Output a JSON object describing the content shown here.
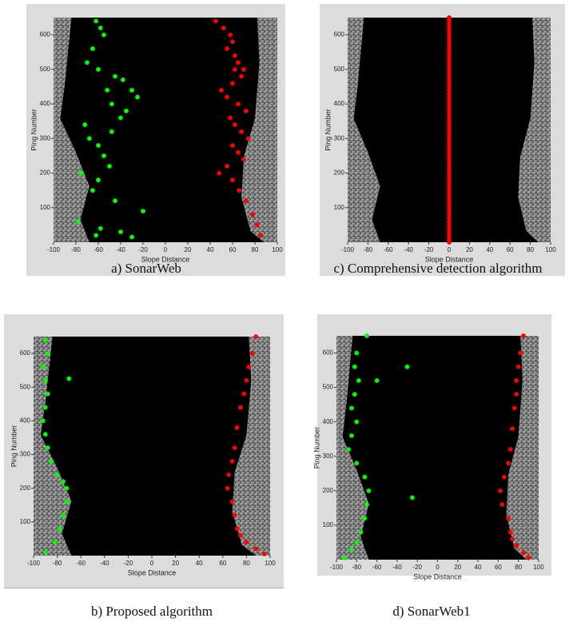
{
  "chart_data": [
    {
      "type": "scatter",
      "caption": "a) SonarWeb",
      "xlabel": "Slope Distance",
      "ylabel": "Ping Number",
      "xlim": [
        -100,
        100
      ],
      "ylim": [
        0,
        650
      ],
      "xticks": [
        -100,
        -80,
        -60,
        -40,
        -20,
        0,
        20,
        40,
        60,
        80,
        100
      ],
      "yticks": [
        100,
        200,
        300,
        400,
        500,
        600
      ],
      "series": [
        {
          "color": "#00ff00",
          "x": [
            -62,
            -58,
            -55,
            -65,
            -70,
            -60,
            -45,
            -38,
            -30,
            -25,
            -52,
            -48,
            -35,
            -40,
            -72,
            -68,
            -60,
            -55,
            -50,
            -75,
            -65,
            -45,
            -20,
            -78,
            -58,
            -62,
            -40,
            -30,
            -48,
            -60
          ],
          "values": [
            640,
            620,
            600,
            560,
            520,
            500,
            480,
            470,
            440,
            420,
            440,
            400,
            380,
            360,
            340,
            300,
            280,
            250,
            220,
            200,
            150,
            120,
            90,
            60,
            40,
            20,
            30,
            15,
            320,
            180
          ]
        },
        {
          "color": "#ff0000",
          "x": [
            45,
            52,
            58,
            60,
            55,
            62,
            65,
            70,
            68,
            60,
            50,
            55,
            65,
            72,
            58,
            62,
            68,
            74,
            60,
            65,
            70,
            55,
            48,
            60,
            66,
            72,
            78,
            82,
            85,
            62
          ],
          "values": [
            640,
            620,
            600,
            580,
            560,
            540,
            520,
            500,
            480,
            460,
            440,
            420,
            400,
            380,
            360,
            340,
            320,
            300,
            280,
            260,
            240,
            220,
            200,
            180,
            150,
            120,
            80,
            50,
            20,
            500
          ]
        }
      ]
    },
    {
      "type": "scatter",
      "caption": "b) Proposed algorithm",
      "xlabel": "Slope Distance",
      "ylabel": "Ping Number",
      "xlim": [
        -100,
        100
      ],
      "ylim": [
        0,
        650
      ],
      "xticks": [
        -100,
        -80,
        -60,
        -40,
        -20,
        0,
        20,
        40,
        60,
        80,
        100
      ],
      "yticks": [
        100,
        200,
        300,
        400,
        500,
        600
      ],
      "series": [
        {
          "color": "#00ff00",
          "x": [
            -90,
            -88,
            -92,
            -90,
            -88,
            -90,
            -92,
            -90,
            -88,
            -85,
            -80,
            -75,
            -72,
            -72,
            -75,
            -78,
            -82,
            -90,
            -70
          ],
          "values": [
            640,
            600,
            560,
            520,
            480,
            440,
            400,
            360,
            320,
            280,
            240,
            220,
            200,
            160,
            120,
            80,
            40,
            10,
            525
          ]
        },
        {
          "color": "#ff0000",
          "x": [
            88,
            85,
            82,
            80,
            78,
            75,
            72,
            70,
            68,
            65,
            64,
            68,
            70,
            72,
            75,
            80,
            88,
            95
          ],
          "values": [
            650,
            600,
            560,
            520,
            480,
            440,
            380,
            320,
            280,
            240,
            200,
            160,
            120,
            80,
            60,
            40,
            20,
            5
          ]
        }
      ]
    },
    {
      "type": "scatter",
      "caption": "c) Comprehensive detection algorithm",
      "xlabel": "Slope Distance",
      "ylabel": "Ping Number",
      "xlim": [
        -100,
        100
      ],
      "ylim": [
        0,
        650
      ],
      "xticks": [
        -100,
        -80,
        -60,
        -40,
        -20,
        0,
        20,
        40,
        60,
        80,
        100
      ],
      "yticks": [
        100,
        200,
        300,
        400,
        500,
        600
      ],
      "series": [
        {
          "color": "#ff0000",
          "x": [
            0,
            0,
            0,
            0,
            0,
            0,
            0,
            0,
            0,
            0,
            0,
            0,
            0,
            0,
            0,
            0,
            0,
            0,
            0,
            0,
            0,
            0,
            0,
            0,
            0,
            0,
            0,
            0,
            0,
            0,
            0,
            0,
            0,
            0,
            0,
            0,
            0,
            0,
            0,
            0,
            0,
            0,
            0,
            0,
            0,
            0,
            0,
            0,
            0,
            0,
            0,
            0,
            0,
            0,
            0,
            0,
            0,
            0,
            0,
            0,
            0,
            0,
            0,
            0,
            0,
            0
          ],
          "values": [
            0,
            10,
            20,
            30,
            40,
            50,
            60,
            70,
            80,
            90,
            100,
            110,
            120,
            130,
            140,
            150,
            160,
            170,
            180,
            190,
            200,
            210,
            220,
            230,
            240,
            250,
            260,
            270,
            280,
            290,
            300,
            310,
            320,
            330,
            340,
            350,
            360,
            370,
            380,
            390,
            400,
            410,
            420,
            430,
            440,
            450,
            460,
            470,
            480,
            490,
            500,
            510,
            520,
            530,
            540,
            550,
            560,
            570,
            580,
            590,
            600,
            610,
            620,
            630,
            640,
            650
          ]
        }
      ]
    },
    {
      "type": "scatter",
      "caption": "d) SonarWeb1",
      "xlabel": "Slope Distance",
      "ylabel": "Ping Number",
      "xlim": [
        -100,
        100
      ],
      "ylim": [
        0,
        650
      ],
      "xticks": [
        -100,
        -80,
        -60,
        -40,
        -20,
        0,
        20,
        40,
        60,
        80,
        100
      ],
      "yticks": [
        100,
        200,
        300,
        400,
        500,
        600
      ],
      "series": [
        {
          "color": "#00ff00",
          "x": [
            -70,
            -80,
            -82,
            -78,
            -82,
            -85,
            -80,
            -85,
            -88,
            -80,
            -72,
            -68,
            -70,
            -72,
            -76,
            -80,
            -85,
            -92,
            -60,
            -30,
            -25
          ],
          "values": [
            650,
            600,
            560,
            520,
            480,
            440,
            400,
            360,
            320,
            280,
            240,
            200,
            160,
            120,
            80,
            50,
            30,
            5,
            520,
            560,
            180
          ]
        },
        {
          "color": "#ff0000",
          "x": [
            85,
            82,
            80,
            78,
            78,
            76,
            74,
            72,
            70,
            66,
            62,
            64,
            70,
            72,
            74,
            78,
            85,
            90
          ],
          "values": [
            650,
            600,
            560,
            520,
            480,
            440,
            380,
            320,
            280,
            240,
            200,
            160,
            120,
            80,
            60,
            40,
            20,
            5
          ]
        }
      ]
    }
  ]
}
